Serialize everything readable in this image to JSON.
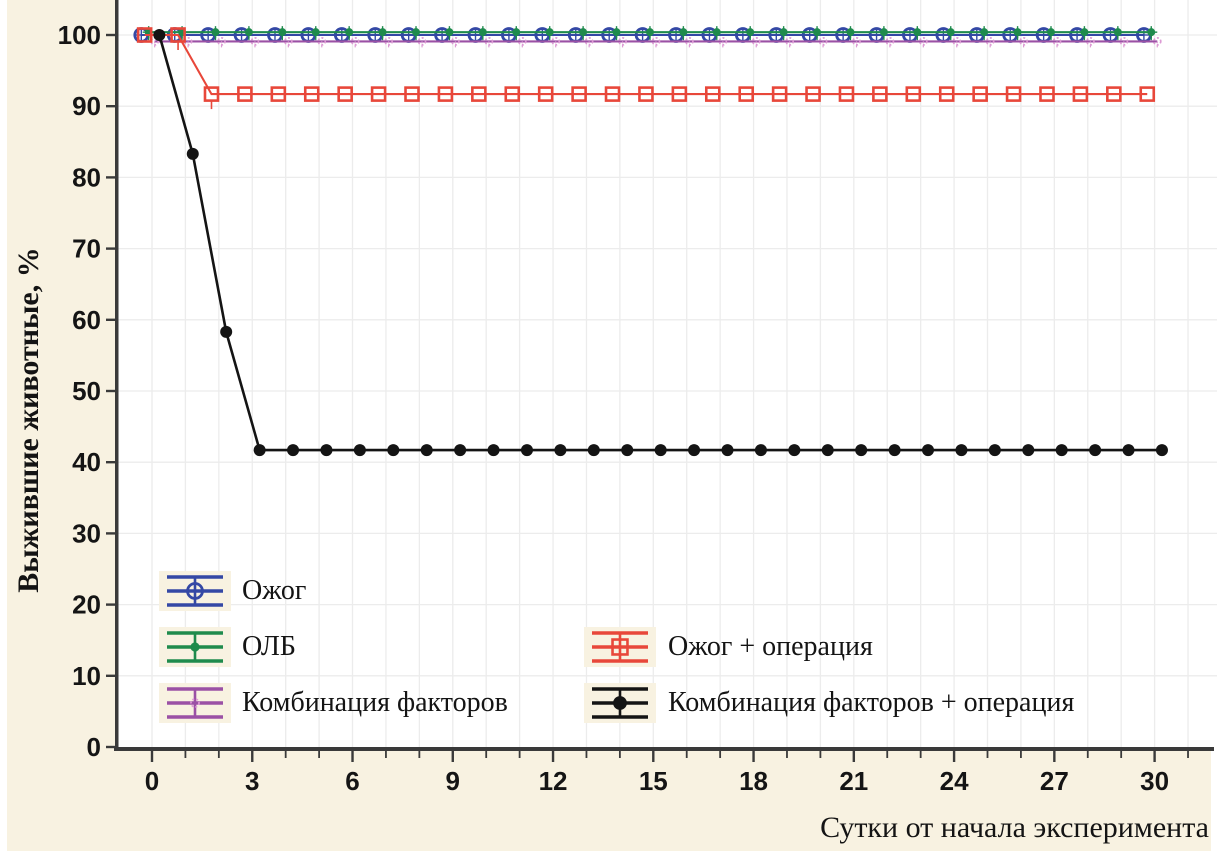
{
  "figure": {
    "margin_color": "#f8f2e1",
    "plot_background": "#ffffff",
    "grid_color": "#ececec",
    "axis_color": "#3a3a3a",
    "tick_label_color": "#151515",
    "title_color": "#141414"
  },
  "chart_data": {
    "type": "line",
    "title": "",
    "xlabel": "Сутки от начала эксперимента",
    "ylabel": "Выжившие животные, %",
    "xlim": [
      -1.05,
      31.9
    ],
    "ylim": [
      0,
      104.9
    ],
    "x_ticks_major": [
      0,
      3,
      6,
      9,
      12,
      15,
      18,
      21,
      24,
      27,
      30
    ],
    "x_minor_step": 1,
    "y_ticks": [
      0,
      10,
      20,
      30,
      40,
      50,
      60,
      70,
      80,
      90,
      100
    ],
    "grid": true,
    "legend_position": "bottom-left-inside",
    "x_days": [
      0,
      1,
      2,
      3,
      4,
      5,
      6,
      7,
      8,
      9,
      10,
      11,
      12,
      13,
      14,
      15,
      16,
      17,
      18,
      19,
      20,
      21,
      22,
      23,
      24,
      25,
      26,
      27,
      28,
      29,
      30
    ],
    "series": [
      {
        "name": "Ожог",
        "color": "#3448a5",
        "marker": "circle-open",
        "marker_size": 13,
        "x_offset": -0.32,
        "y_offset": 0,
        "values": [
          100,
          100,
          100,
          100,
          100,
          100,
          100,
          100,
          100,
          100,
          100,
          100,
          100,
          100,
          100,
          100,
          100,
          100,
          100,
          100,
          100,
          100,
          100,
          100,
          100,
          100,
          100,
          100,
          100,
          100,
          100
        ]
      },
      {
        "name": "ОЛБ",
        "color": "#1f8b4d",
        "marker": "circle-cross-small",
        "marker_size": 8,
        "x_offset": -0.1,
        "y_offset": 0.4,
        "values": [
          100,
          100,
          100,
          100,
          100,
          100,
          100,
          100,
          100,
          100,
          100,
          100,
          100,
          100,
          100,
          100,
          100,
          100,
          100,
          100,
          100,
          100,
          100,
          100,
          100,
          100,
          100,
          100,
          100,
          100,
          100
        ]
      },
      {
        "name": "Комбинация факторов",
        "color": "#9b51a5",
        "marker": "circle-dashed-tiny",
        "marker_color": "#dc9bd4",
        "marker_size": 7,
        "x_offset": 0.08,
        "y_offset": -0.9,
        "values": [
          100,
          100,
          100,
          100,
          100,
          100,
          100,
          100,
          100,
          100,
          100,
          100,
          100,
          100,
          100,
          100,
          100,
          100,
          100,
          100,
          100,
          100,
          100,
          100,
          100,
          100,
          100,
          100,
          100,
          100,
          100
        ]
      },
      {
        "name": "Ожог + операция",
        "color": "#e8473a",
        "marker": "square-open",
        "marker_size": 13,
        "x_offset": -0.22,
        "y_offset": 0,
        "values": [
          100,
          100,
          91.7,
          91.7,
          91.7,
          91.7,
          91.7,
          91.7,
          91.7,
          91.7,
          91.7,
          91.7,
          91.7,
          91.7,
          91.7,
          91.7,
          91.7,
          91.7,
          91.7,
          91.7,
          91.7,
          91.7,
          91.7,
          91.7,
          91.7,
          91.7,
          91.7,
          91.7,
          91.7,
          91.7,
          91.7
        ]
      },
      {
        "name": "Комбинация факторов + операция",
        "color": "#141414",
        "marker": "circle-filled",
        "marker_size": 12,
        "x_offset": 0.22,
        "y_offset": 0,
        "values": [
          100,
          83.3,
          58.3,
          41.7,
          41.7,
          41.7,
          41.7,
          41.7,
          41.7,
          41.7,
          41.7,
          41.7,
          41.7,
          41.7,
          41.7,
          41.7,
          41.7,
          41.7,
          41.7,
          41.7,
          41.7,
          41.7,
          41.7,
          41.7,
          41.7,
          41.7,
          41.7,
          41.7,
          41.7,
          41.7,
          41.7
        ]
      }
    ]
  }
}
